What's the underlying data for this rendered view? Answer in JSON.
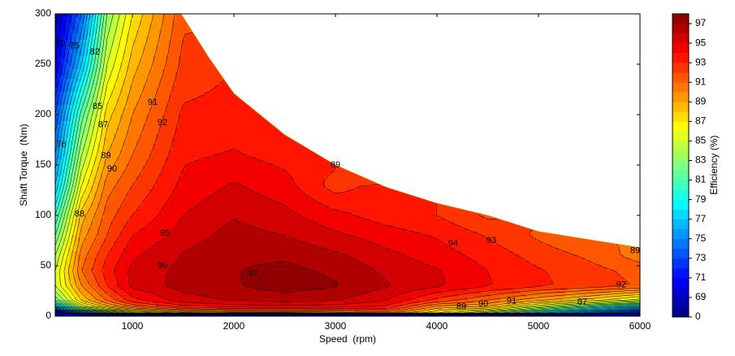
{
  "chart_data": {
    "type": "contour",
    "xlabel": "Speed  (rpm)",
    "ylabel": "Shaft Torque  (Nm)",
    "colorbar_label": "Efficiency (%)",
    "colormap": "jet",
    "xlim": [
      240,
      6000
    ],
    "ylim": [
      0,
      300
    ],
    "xticks": [
      1000,
      2000,
      3000,
      4000,
      5000,
      6000
    ],
    "yticks": [
      0,
      50,
      100,
      150,
      200,
      250,
      300
    ],
    "levels": [
      0,
      68,
      69,
      70,
      71,
      72,
      73,
      74,
      75,
      76,
      77,
      78,
      79,
      80,
      81,
      82,
      83,
      84,
      85,
      86,
      87,
      88,
      89,
      90,
      91,
      92,
      93,
      94,
      95,
      96,
      97,
      98
    ],
    "cticks": [
      0,
      69,
      71,
      73,
      75,
      77,
      79,
      81,
      83,
      85,
      87,
      89,
      91,
      93,
      95,
      97
    ],
    "x": [
      240,
      500,
      750,
      1000,
      1500,
      2000,
      2500,
      3000,
      3500,
      4000,
      4500,
      5000,
      5500,
      6000
    ],
    "y": [
      0,
      3,
      8,
      15,
      30,
      45,
      60,
      80,
      100,
      130,
      160,
      200,
      250,
      300
    ],
    "z": [
      [
        50,
        50,
        50,
        50,
        50,
        50,
        50,
        50,
        50,
        50,
        50,
        50,
        50,
        50
      ],
      [
        66,
        75,
        80,
        84,
        87,
        88,
        88,
        89,
        90,
        87,
        83,
        78,
        74,
        70
      ],
      [
        75,
        84,
        88,
        90.5,
        93,
        94,
        94.2,
        94,
        93.5,
        89,
        88.5,
        84,
        80,
        76
      ],
      [
        82,
        88,
        91,
        93.5,
        95.5,
        96,
        96.3,
        96,
        95,
        92.5,
        90.8,
        89,
        87.2,
        85
      ],
      [
        85,
        90,
        93,
        95.3,
        96.4,
        96.9,
        97.5,
        97.1,
        96.1,
        95.2,
        94.1,
        93.2,
        92.6,
        91.9
      ],
      [
        85,
        91,
        93.5,
        95.3,
        96.3,
        96.95,
        97.3,
        96.8,
        95.8,
        95.1,
        94,
        93.1,
        92.4,
        91.6
      ],
      [
        84,
        90.5,
        93,
        94.8,
        96.1,
        96.8,
        96.8,
        96.2,
        95.3,
        94.5,
        93.6,
        92.6,
        91.8,
        90.5
      ],
      [
        82,
        89.5,
        92,
        94,
        95.5,
        96.4,
        96,
        95.2,
        94.5,
        93.9,
        92.9,
        91.8,
        90.8,
        null
      ],
      [
        80,
        88.5,
        91.5,
        93,
        95,
        95.9,
        95.3,
        94.3,
        93.5,
        93,
        91.8,
        null,
        null,
        null
      ],
      [
        77,
        86,
        90.5,
        92,
        94.3,
        95.1,
        94.4,
        92.5,
        null,
        null,
        null,
        null,
        null,
        null
      ],
      [
        75,
        84,
        89,
        91,
        93.8,
        94.1,
        93.6,
        null,
        null,
        null,
        null,
        null,
        null,
        null
      ],
      [
        73,
        81.5,
        87.5,
        90,
        93.2,
        93.4,
        null,
        null,
        null,
        null,
        null,
        null,
        null,
        null
      ],
      [
        70,
        77,
        85,
        88.5,
        92.3,
        null,
        null,
        null,
        null,
        null,
        null,
        null,
        null,
        null
      ],
      [
        68.5,
        74,
        83,
        87,
        91.8,
        null,
        null,
        null,
        null,
        null,
        null,
        null,
        null,
        null
      ]
    ],
    "torque_limit": {
      "x": [
        240,
        1480,
        1750,
        2000,
        2500,
        3000,
        3500,
        4000,
        4500,
        5000,
        5500,
        6000
      ],
      "y": [
        300,
        300,
        257,
        221,
        180,
        150,
        128,
        112,
        100,
        84,
        76,
        68
      ]
    },
    "contour_labels": [
      {
        "level": 70,
        "x": 290,
        "y": 270
      },
      {
        "level": 75,
        "x": 430,
        "y": 268
      },
      {
        "level": 76,
        "x": 300,
        "y": 170
      },
      {
        "level": 82,
        "x": 630,
        "y": 262
      },
      {
        "level": 85,
        "x": 656,
        "y": 208
      },
      {
        "level": 87,
        "x": 712,
        "y": 190
      },
      {
        "level": 88,
        "x": 480,
        "y": 101
      },
      {
        "level": 89,
        "x": 740,
        "y": 159
      },
      {
        "level": 90,
        "x": 800,
        "y": 146
      },
      {
        "level": 91,
        "x": 1200,
        "y": 212
      },
      {
        "level": 92,
        "x": 1296,
        "y": 192
      },
      {
        "level": 95,
        "x": 1320,
        "y": 82
      },
      {
        "level": 96,
        "x": 1296,
        "y": 50
      },
      {
        "level": 97,
        "x": 2192,
        "y": 42
      },
      {
        "level": 89,
        "x": 3000,
        "y": 150
      },
      {
        "level": 94,
        "x": 4160,
        "y": 72
      },
      {
        "level": 93,
        "x": 4536,
        "y": 75
      },
      {
        "level": 92,
        "x": 5816,
        "y": 31
      },
      {
        "level": 89,
        "x": 5952,
        "y": 65
      },
      {
        "level": 89,
        "x": 4240,
        "y": 9
      },
      {
        "level": 90,
        "x": 4456,
        "y": 12
      },
      {
        "level": 91,
        "x": 4736,
        "y": 15
      },
      {
        "level": 87,
        "x": 5432,
        "y": 14
      }
    ]
  }
}
